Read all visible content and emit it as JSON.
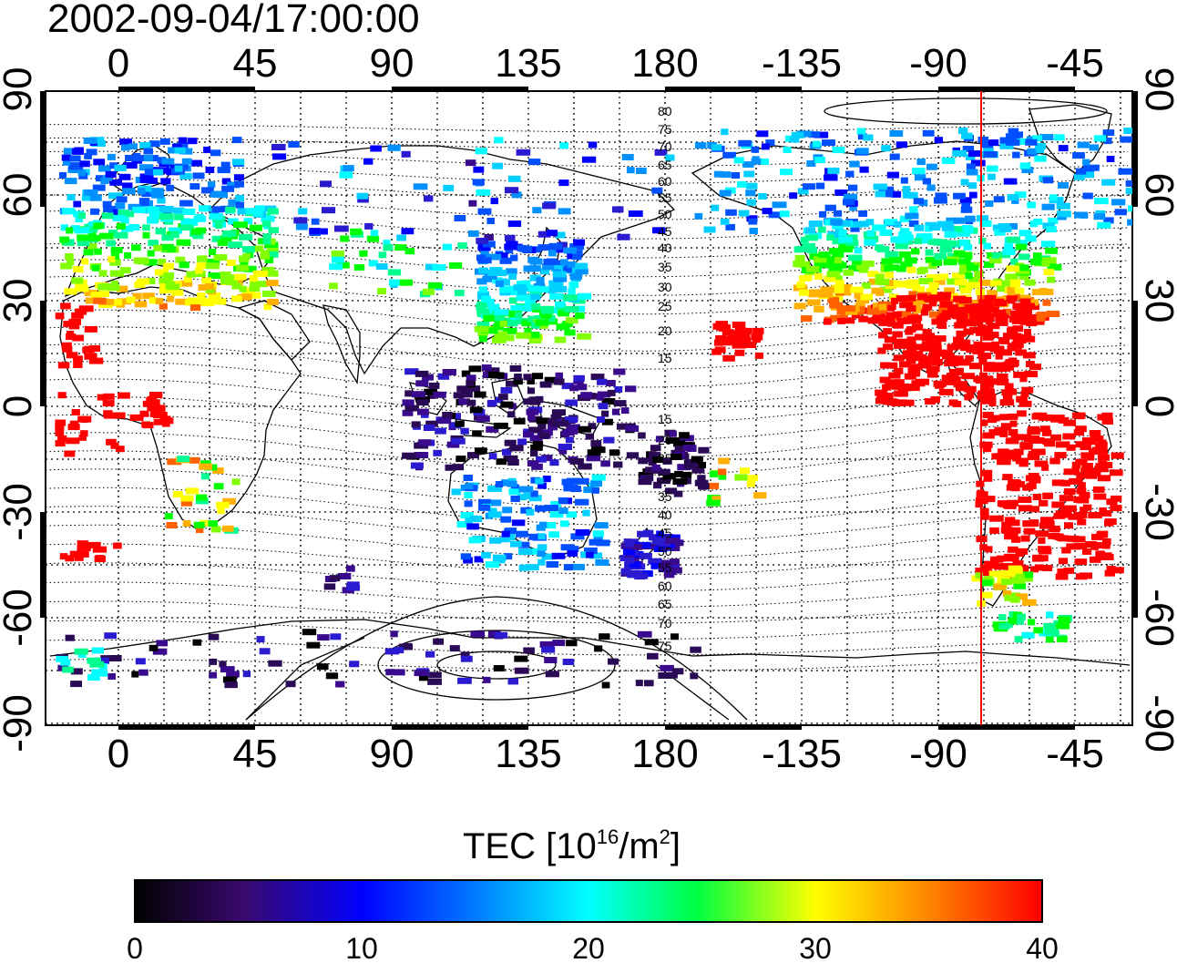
{
  "title": "2002-09-04/17:00:00",
  "map": {
    "top_axis_labels": [
      "0",
      "45",
      "90",
      "135",
      "180",
      "-135",
      "-90",
      "-45"
    ],
    "bottom_axis_labels": [
      "0",
      "45",
      "90",
      "135",
      "180",
      "-135",
      "-90",
      "-45"
    ],
    "left_axis_labels": [
      "90",
      "60",
      "30",
      "0",
      "-30",
      "-60",
      "-90"
    ],
    "right_axis_labels": [
      "90",
      "60",
      "30",
      "0",
      "-30",
      "-60",
      "-90"
    ],
    "geomagnetic_contour_labels": [
      "80",
      "75",
      "70",
      "65",
      "60",
      "55",
      "50",
      "45",
      "40",
      "35",
      "30",
      "25",
      "20",
      "15",
      "15",
      "20",
      "25",
      "30",
      "35",
      "40",
      "45",
      "50",
      "55",
      "60",
      "65",
      "70",
      "75"
    ],
    "terminator_line_color": "#ff0000"
  },
  "colorbar": {
    "title_main": "TEC  [10",
    "title_sup1": "16",
    "title_mid": "/m",
    "title_sup2": "2",
    "title_end": "]",
    "tick_labels": [
      "0",
      "10",
      "20",
      "30",
      "40"
    ],
    "range": [
      0,
      40
    ],
    "colors": [
      "#000000",
      "#3a0a6e",
      "#0000ff",
      "#00ffff",
      "#00ff00",
      "#ffff00",
      "#ff8000",
      "#ff0000"
    ]
  }
}
